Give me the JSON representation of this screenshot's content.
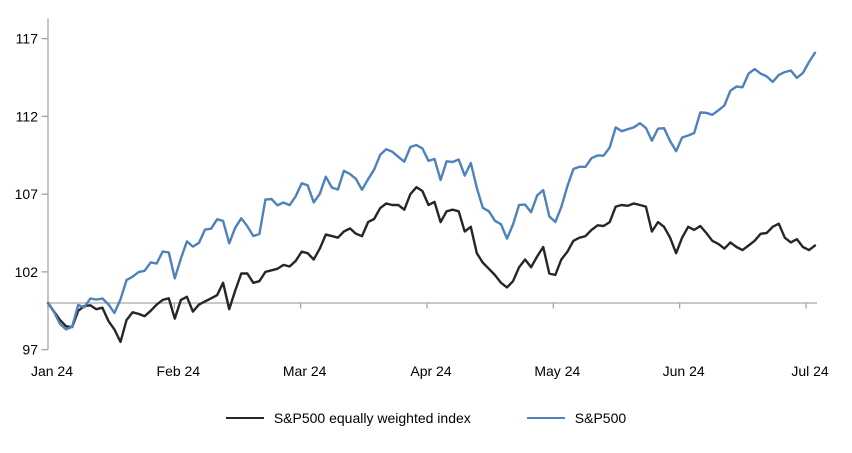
{
  "chart_data": {
    "type": "line",
    "title": "",
    "x_axis": {
      "tick_labels": [
        "Jan 24",
        "Feb 24",
        "Mar 24",
        "Apr 24",
        "May 24",
        "Jun 24",
        "Jul 24"
      ],
      "frequency": "daily",
      "axis_crosses_at": 100
    },
    "y_axis": {
      "ticks": [
        117,
        112,
        107,
        102,
        97
      ],
      "range": [
        97,
        118.3
      ],
      "baseline": 100
    },
    "grid": false,
    "legend_position": "bottom-center",
    "series": [
      {
        "name": "S&P500 equally weighted index",
        "color": "#262626",
        "values": [
          100,
          99.45,
          98.9,
          98.5,
          98.45,
          99.5,
          99.8,
          99.85,
          99.6,
          99.7,
          98.85,
          98.3,
          97.5,
          98.9,
          99.4,
          99.3,
          99.15,
          99.5,
          99.9,
          100.2,
          100.3,
          99.0,
          100.2,
          100.4,
          99.45,
          99.9,
          100.1,
          100.3,
          100.5,
          101.3,
          99.6,
          100.8,
          101.9,
          101.9,
          101.3,
          101.4,
          102.0,
          102.1,
          102.2,
          102.45,
          102.35,
          102.7,
          103.3,
          103.2,
          102.8,
          103.5,
          104.4,
          104.3,
          104.2,
          104.6,
          104.8,
          104.45,
          104.3,
          105.2,
          105.4,
          106.1,
          106.4,
          106.3,
          106.3,
          106.0,
          107.0,
          107.45,
          107.2,
          106.3,
          106.5,
          105.2,
          105.9,
          106.0,
          105.9,
          104.6,
          104.9,
          103.2,
          102.6,
          102.2,
          101.8,
          101.3,
          101.0,
          101.4,
          102.3,
          102.8,
          102.3,
          103.0,
          103.6,
          101.9,
          101.8,
          102.8,
          103.3,
          104.0,
          104.2,
          104.3,
          104.7,
          105.0,
          104.95,
          105.2,
          106.2,
          106.3,
          106.25,
          106.4,
          106.3,
          106.2,
          104.6,
          105.2,
          104.9,
          104.2,
          103.2,
          104.2,
          104.9,
          104.7,
          104.95,
          104.5,
          104.0,
          103.8,
          103.5,
          103.9,
          103.6,
          103.4,
          103.7,
          104.0,
          104.45,
          104.5,
          104.9,
          105.1,
          104.2,
          103.9,
          104.1,
          103.6,
          103.4,
          103.7
        ]
      },
      {
        "name": "S&P500",
        "color": "#4F81BD",
        "values": [
          100,
          99.43,
          98.64,
          98.3,
          98.48,
          99.87,
          99.72,
          100.29,
          100.22,
          100.29,
          99.92,
          99.36,
          100.23,
          101.47,
          101.69,
          101.99,
          102.07,
          102.61,
          102.54,
          103.31,
          103.25,
          101.59,
          102.86,
          103.96,
          103.63,
          103.87,
          104.72,
          104.78,
          105.38,
          105.28,
          103.84,
          104.84,
          105.45,
          104.94,
          104.31,
          104.44,
          106.65,
          106.69,
          106.28,
          106.46,
          106.29,
          106.85,
          107.7,
          107.57,
          106.47,
          107.02,
          108.12,
          107.42,
          107.3,
          108.5,
          108.29,
          107.98,
          107.28,
          107.96,
          108.57,
          109.53,
          109.89,
          109.73,
          109.4,
          109.09,
          110.03,
          110.16,
          109.94,
          109.14,
          109.26,
          107.91,
          109.11,
          109.07,
          109.23,
          108.19,
          109.0,
          107.41,
          106.12,
          105.9,
          105.29,
          105.06,
          104.14,
          105.05,
          106.31,
          106.33,
          105.84,
          106.92,
          107.26,
          105.57,
          105.21,
          106.17,
          107.51,
          108.62,
          108.76,
          108.76,
          109.31,
          109.49,
          109.47,
          110.0,
          111.29,
          111.05,
          111.18,
          111.29,
          111.56,
          111.26,
          110.44,
          111.21,
          111.24,
          110.42,
          109.76,
          110.64,
          110.77,
          110.93,
          112.25,
          112.23,
          112.1,
          112.39,
          112.7,
          113.65,
          113.92,
          113.87,
          114.75,
          115.04,
          114.75,
          114.57,
          114.22,
          114.67,
          114.85,
          114.95,
          114.48,
          114.79,
          115.5,
          116.09
        ]
      }
    ]
  },
  "colors": {
    "axis": "#A6A6A6",
    "text": "#000000",
    "background": "#FFFFFF"
  }
}
